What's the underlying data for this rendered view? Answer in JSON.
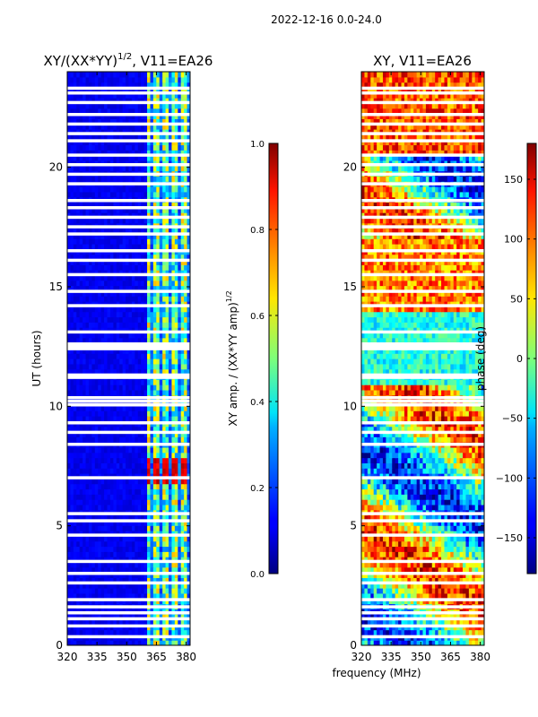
{
  "figure_title": "2022-12-16 0.0-24.0",
  "xlabel_shared": "frequency (MHz)",
  "chart_data": [
    {
      "type": "heatmap",
      "title_main": "XY/(XX*YY)",
      "title_sup": "1/2",
      "title_tail": ", V11=EA26",
      "xlabel": "",
      "ylabel": "UT (hours)",
      "xlim": [
        320,
        382
      ],
      "ylim": [
        0,
        24
      ],
      "xticks": [
        320,
        335,
        350,
        365,
        380
      ],
      "yticks": [
        0,
        5,
        10,
        15,
        20
      ],
      "colormap": "jet",
      "colorbar": {
        "label_main": "XY amp. / (XX*YY amp)",
        "label_sup": "1/2",
        "range": [
          0.0,
          1.0
        ],
        "ticks": [
          "0.0",
          "0.2",
          "0.4",
          "0.6",
          "0.8",
          "1.0"
        ]
      },
      "background_level": 0.08,
      "bright_band": {
        "freq_range": [
          361,
          382
        ],
        "level": 0.55
      },
      "hot_region": {
        "freq_range": [
          361,
          380
        ],
        "ut_range": [
          6.8,
          7.8
        ],
        "level": 0.95
      },
      "flagged_rows_ut": [
        0.35,
        0.8,
        1.1,
        1.35,
        1.6,
        1.9,
        2.6,
        3.0,
        3.5,
        4.6,
        5.2,
        5.5,
        7.0,
        8.4,
        8.9,
        9.3,
        10.05,
        10.2,
        10.35,
        11.2,
        11.3,
        12.4,
        12.5,
        12.6,
        13.1,
        14.2,
        14.8,
        15.5,
        16.1,
        16.5,
        17.2,
        17.5,
        17.9,
        18.3,
        18.6,
        19.3,
        19.7,
        20.1,
        20.5,
        21.1,
        21.4,
        21.8,
        22.2,
        22.7,
        23.1,
        23.3
      ]
    },
    {
      "type": "heatmap",
      "title_main": "XY, V11=EA26",
      "xlabel": "",
      "ylabel": "",
      "xlim": [
        320,
        382
      ],
      "ylim": [
        0,
        24
      ],
      "xticks": [
        320,
        335,
        350,
        365,
        380
      ],
      "yticks": [
        0,
        5,
        10,
        15,
        20
      ],
      "colormap": "jet",
      "colorbar": {
        "label_main": "phase (deg)",
        "range": [
          -180,
          180
        ],
        "ticks": [
          "−150",
          "−100",
          "−50",
          "0",
          "50",
          "100",
          "150"
        ]
      },
      "flagged_rows_ut": [
        0.35,
        0.8,
        1.1,
        1.35,
        1.6,
        1.9,
        2.6,
        3.0,
        3.5,
        4.6,
        5.2,
        5.5,
        7.0,
        8.4,
        8.9,
        9.3,
        10.05,
        10.2,
        10.35,
        11.2,
        11.3,
        12.4,
        12.5,
        12.6,
        13.1,
        14.2,
        14.8,
        15.5,
        16.1,
        16.5,
        17.2,
        17.5,
        17.9,
        18.3,
        18.6,
        19.3,
        19.7,
        20.1,
        20.5,
        21.1,
        21.4,
        21.8,
        22.2,
        22.7,
        23.1,
        23.3
      ]
    }
  ]
}
